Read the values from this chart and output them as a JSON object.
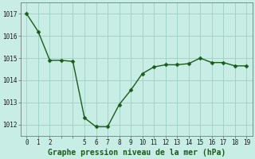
{
  "x": [
    0,
    1,
    2,
    3,
    4,
    5,
    6,
    7,
    8,
    9,
    10,
    11,
    12,
    13,
    14,
    15,
    16,
    17,
    18,
    19
  ],
  "y": [
    1017.0,
    1016.2,
    1014.9,
    1014.9,
    1014.85,
    1012.3,
    1011.9,
    1011.9,
    1012.9,
    1013.55,
    1014.3,
    1014.6,
    1014.7,
    1014.7,
    1014.75,
    1015.0,
    1014.8,
    1014.8,
    1014.65,
    1014.65
  ],
  "line_color": "#1a5c1a",
  "marker": "D",
  "marker_size": 2.5,
  "bg_color": "#c8ede4",
  "grid_color": "#9ecfc4",
  "title": "Graphe pression niveau de la mer (hPa)",
  "ylim_min": 1011.5,
  "ylim_max": 1017.5,
  "xlim_min": -0.5,
  "xlim_max": 19.5,
  "yticks": [
    1012,
    1013,
    1014,
    1015,
    1016,
    1017
  ],
  "xtick_labels": [
    "0",
    "1",
    "2",
    "",
    "",
    "5",
    "6",
    "7",
    "8",
    "9",
    "10",
    "11",
    "12",
    "13",
    "14",
    "15",
    "16",
    "17",
    "18",
    "19"
  ],
  "tick_fontsize": 5.5,
  "title_fontsize": 7,
  "line_width": 1.0,
  "spine_color": "#666666"
}
